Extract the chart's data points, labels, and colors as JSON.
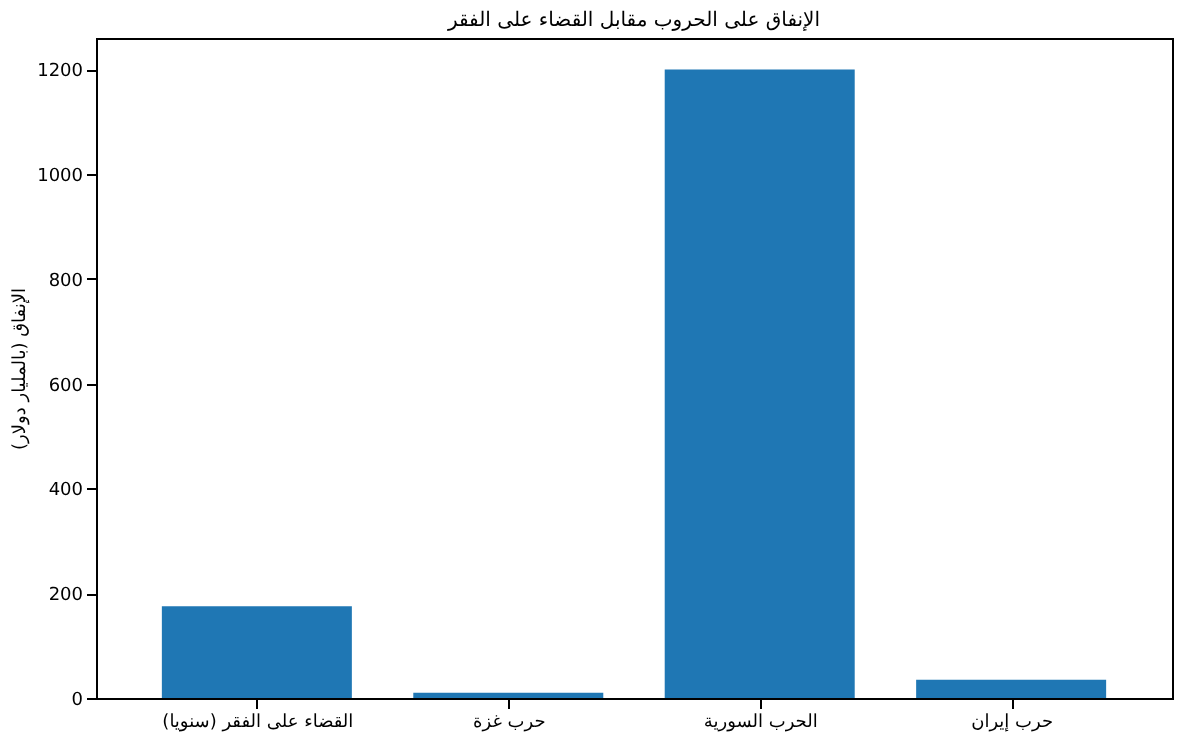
{
  "chart_data": {
    "type": "bar",
    "title": "الإنفاق على الحروب مقابل القضاء على الفقر",
    "ylabel": "الإنفاق (بالمليار دولار)",
    "categories": [
      "القضاء على الفقر (سنويا)",
      "حرب غزة",
      "الحرب السورية",
      "حرب إيران"
    ],
    "values": [
      175,
      10,
      1200,
      35
    ],
    "color": "#1f77b4",
    "ylim": [
      0,
      1260
    ],
    "yticks": [
      0,
      200,
      400,
      600,
      800,
      1000,
      1200
    ],
    "grid": false
  }
}
